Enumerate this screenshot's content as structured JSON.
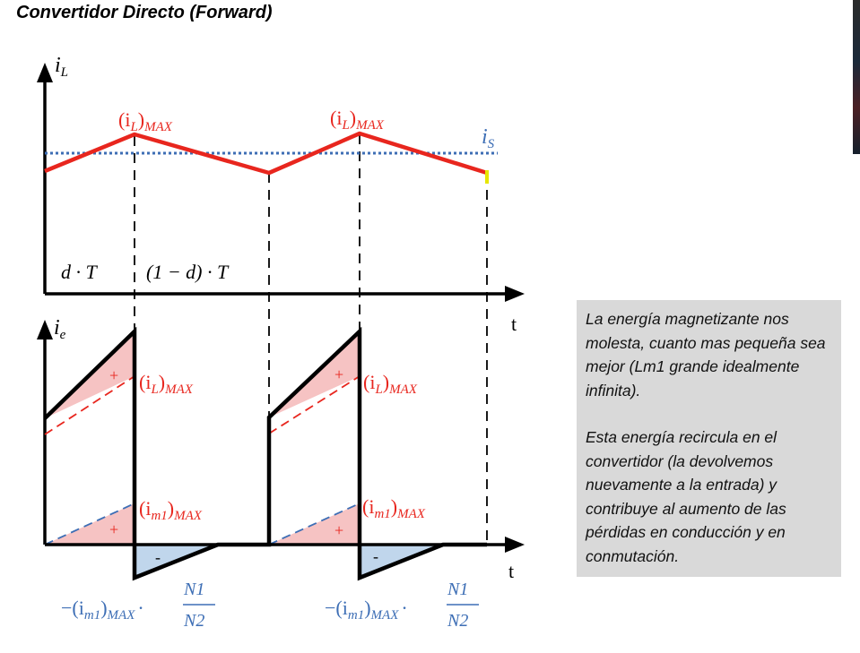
{
  "title": "Convertidor Directo (Forward)",
  "colors": {
    "inductor_current": "#e8261e",
    "source_current": "#3d6eb5",
    "axis": "#000000",
    "fill_positive": "#f6c3c3",
    "fill_negative": "#c0d6ec",
    "note_background": "#d9d9d9"
  },
  "top_plot": {
    "y_axis_symbol": "i",
    "y_axis_subscript": "L",
    "peak_label_base": "(i",
    "peak_label_sub": "L",
    "peak_label_close": ")",
    "peak_label_suffix": "MAX",
    "source_label_base": "i",
    "source_label_sub": "S",
    "interval_on": "d · T",
    "interval_off": "(1 − d) · T",
    "x_axis_label": "t"
  },
  "bottom_plot": {
    "y_axis_symbol": "i",
    "y_axis_subscript": "e",
    "x_axis_label": "t",
    "plus_sign": "+",
    "minus_sign": "-",
    "il_label_base": "(i",
    "il_label_sub": "L",
    "il_label_close": ")",
    "il_label_suffix": "MAX",
    "im_label_base": "(i",
    "im_label_sub": "m1",
    "im_label_close": ")",
    "im_label_suffix": "MAX",
    "neg_label_prefix": "−(i",
    "neg_label_sub": "m1",
    "neg_label_close": ")",
    "neg_label_suffix": "MAX",
    "neg_label_dot": "·",
    "ratio_numerator": "N1",
    "ratio_denominator": "N2"
  },
  "note": {
    "paragraph_1": "La energía magnetizante nos molesta, cuanto mas pequeña sea mejor (Lm1 grande idealmente infinita).",
    "paragraph_2": "Esta energía recircula en el convertidor (la devolvemos nuevamente a la entrada) y contribuye al aumento de las pérdidas en conducción y en conmutación."
  }
}
